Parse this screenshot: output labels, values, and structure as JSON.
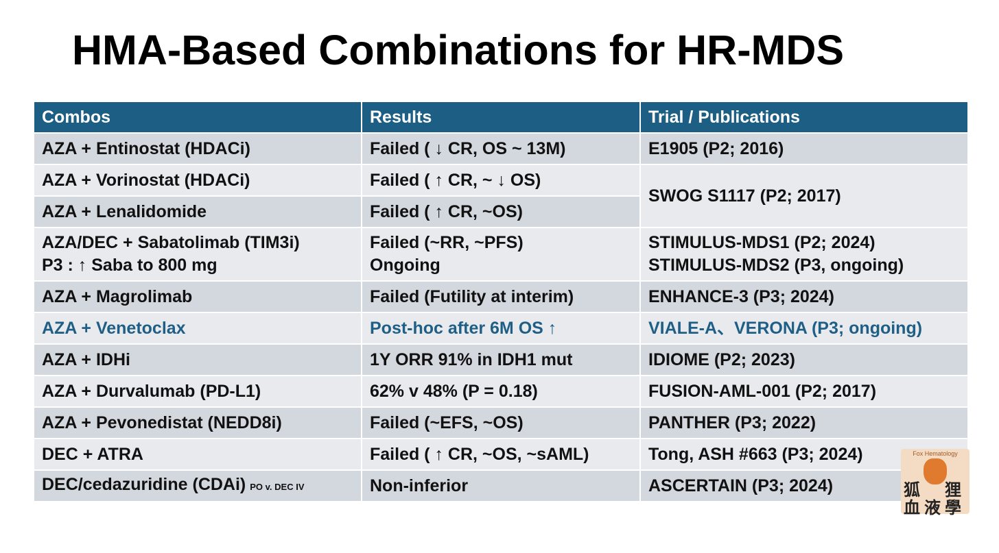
{
  "title": "HMA-Based Combinations for HR-MDS",
  "table": {
    "header": [
      "Combos",
      "Results",
      "Trial / Publications"
    ],
    "rows": [
      {
        "cells": [
          "AZA + Entinostat (HDACi)",
          "Failed ( ↓ CR, OS ~ 13M)",
          "E1905 (P2; 2016)"
        ]
      },
      {
        "cells": [
          "AZA + Vorinostat (HDACi)",
          "Failed ( ↑ CR, ~ ↓ OS)",
          "SWOG S1117 (P2; 2017)"
        ]
      },
      {
        "cells": [
          "AZA + Lenalidomide",
          "Failed ( ↑ CR, ~OS)"
        ]
      },
      {
        "cells": [
          [
            "AZA/DEC + Sabatolimab (TIM3i)",
            "P3 : ↑ Saba to 800 mg"
          ],
          [
            "Failed (~RR, ~PFS)",
            "Ongoing"
          ],
          [
            "STIMULUS-MDS1 (P2; 2024)",
            "STIMULUS-MDS2 (P3, ongoing)"
          ]
        ]
      },
      {
        "cells": [
          "AZA + Magrolimab",
          "Failed (Futility at interim)",
          "ENHANCE-3 (P3; 2024)"
        ]
      },
      {
        "cells": [
          "AZA + Venetoclax",
          "Post-hoc after 6M OS ↑",
          "VIALE-A、VERONA (P3; ongoing)"
        ],
        "color": "#1f5f86"
      },
      {
        "cells": [
          "AZA + IDHi",
          "1Y ORR 91% in IDH1 mut",
          "IDIOME (P2; 2023)"
        ]
      },
      {
        "cells": [
          "AZA + Durvalumab (PD-L1)",
          "62% v 48% (P = 0.18)",
          "FUSION-AML-001 (P2; 2017)"
        ]
      },
      {
        "cells": [
          "AZA + Pevonedistat (NEDD8i)",
          "Failed (~EFS, ~OS)",
          "PANTHER (P3; 2022)"
        ]
      },
      {
        "cells": [
          "DEC + ATRA",
          "Failed ( ↑ CR, ~OS, ~sAML)",
          "Tong, ASH #663 (P3; 2024)"
        ]
      },
      {
        "cells": [
          {
            "text": "DEC/cedazuridine (CDAi)",
            "note": "PO v. DEC IV"
          },
          "Non-inferior",
          "ASCERTAIN (P3; 2024)"
        ]
      }
    ]
  },
  "logo": {
    "name": "Fox Hematology",
    "chars": [
      "狐",
      "狸",
      "血",
      "液",
      "學"
    ]
  }
}
